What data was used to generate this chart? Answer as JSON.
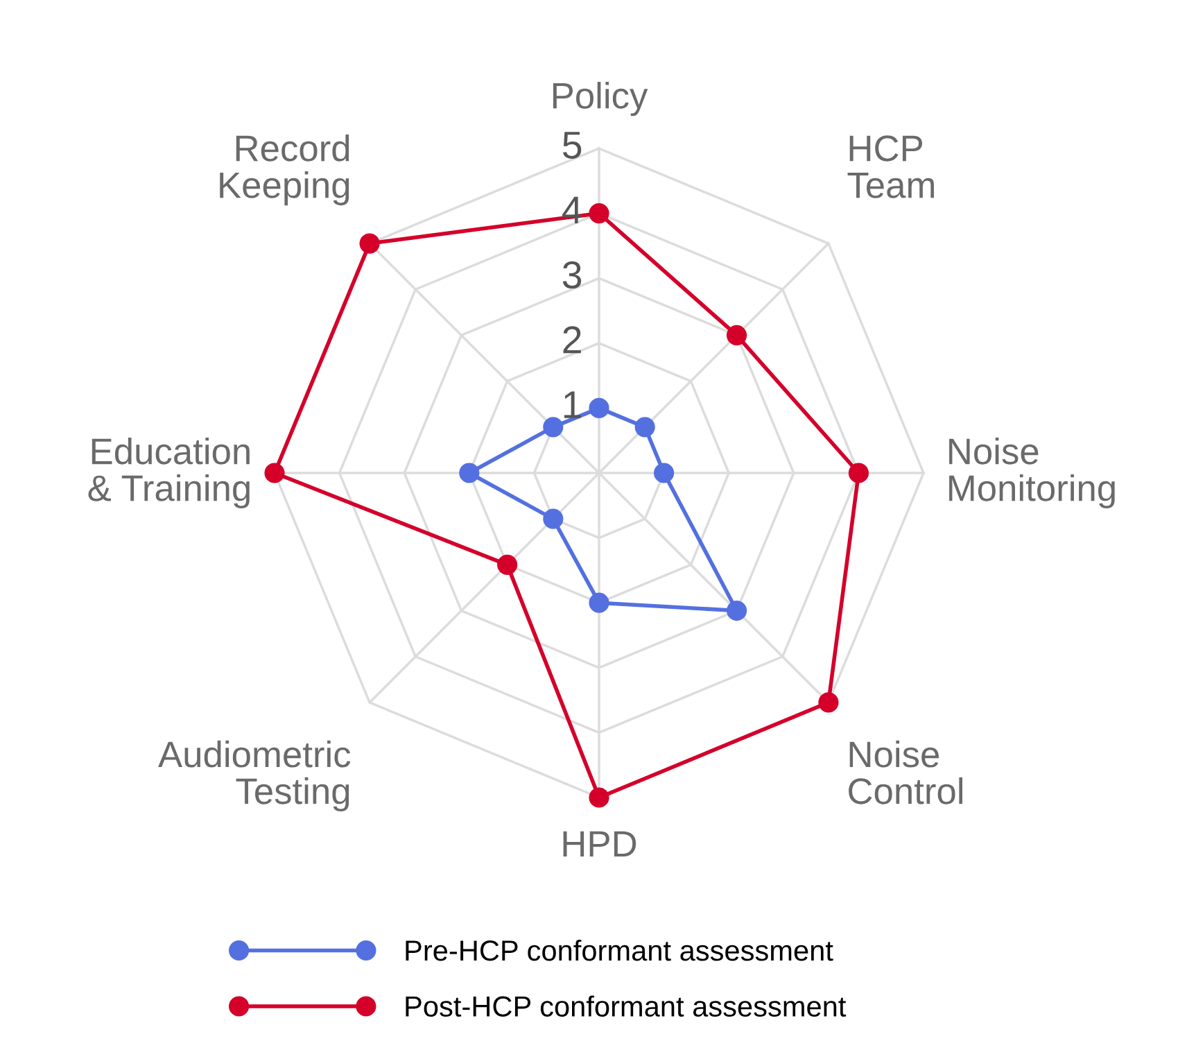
{
  "chart_data": {
    "type": "radar",
    "categories": [
      "Policy",
      "HCP\nTeam",
      "Noise\nMonitoring",
      "Noise\nControl",
      "HPD",
      "Audiometric\nTesting",
      "Education\n& Training",
      "Record\nKeeping"
    ],
    "series": [
      {
        "name": "Pre-HCP conformant assessment",
        "color": "#5470e0",
        "values": [
          1,
          1,
          1,
          3,
          2,
          1,
          2,
          1
        ]
      },
      {
        "name": "Post-HCP conformant assessment",
        "color": "#d4002a",
        "values": [
          4,
          3,
          4,
          5,
          5,
          2,
          5,
          5
        ]
      }
    ],
    "ylim": [
      0,
      5
    ],
    "yticks": [
      1,
      2,
      3,
      4,
      5
    ],
    "grid": true,
    "legend": "bottom",
    "marker": "circle",
    "line_style": "solid"
  }
}
